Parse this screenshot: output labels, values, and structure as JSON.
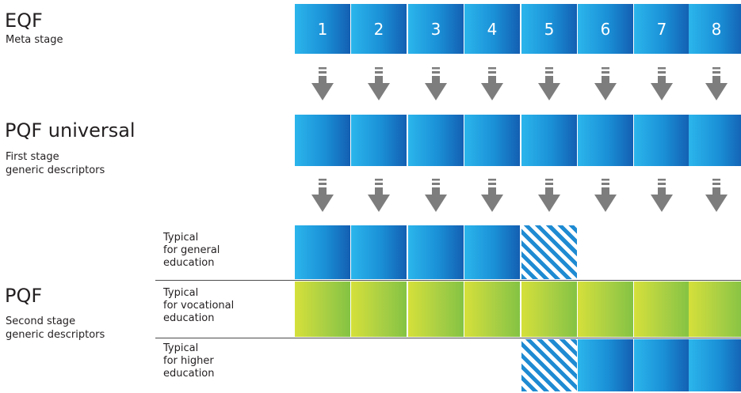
{
  "eqf": {
    "title": "EQF",
    "subtitle": "Meta stage"
  },
  "pqf_universal": {
    "title": "PQF universal",
    "subtitle_line1": "First stage",
    "subtitle_line2": "generic descriptors"
  },
  "pqf": {
    "title": "PQF",
    "subtitle_line1": "Second stage",
    "subtitle_line2": "generic descriptors"
  },
  "levels": [
    "1",
    "2",
    "3",
    "4",
    "5",
    "6",
    "7",
    "8"
  ],
  "rows": {
    "general": {
      "label": "Typical\nfor general\neducation"
    },
    "vocational": {
      "label": "Typical\nfor vocational\neducation"
    },
    "higher": {
      "label": "Typical\nfor higher\neducation"
    }
  },
  "colors": {
    "blue_light": "#2bb5ec",
    "blue_dark": "#145fb2",
    "green_light": "#d5e03a",
    "green_dark": "#84c343",
    "arrow_gray": "#7d7d7d"
  }
}
